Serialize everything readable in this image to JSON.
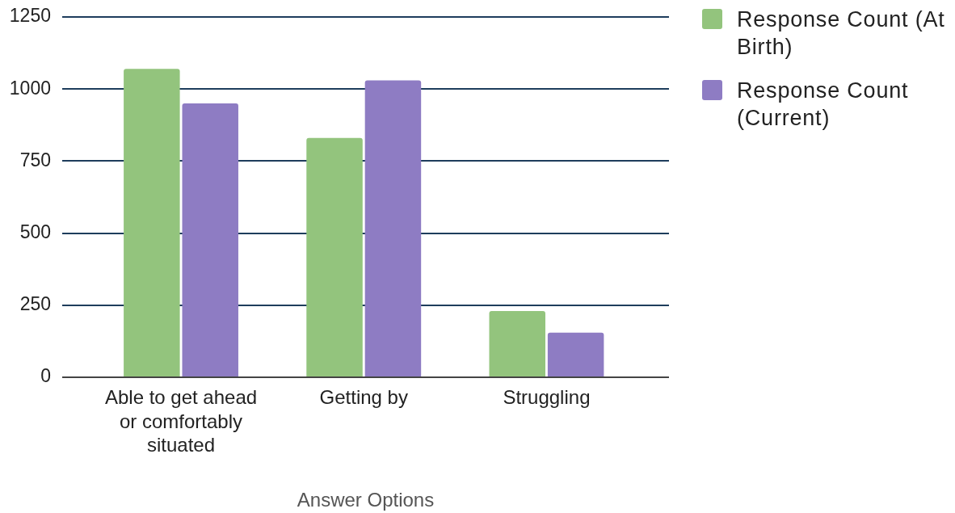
{
  "chart_data": {
    "type": "bar",
    "categories": [
      "Able to get ahead or comfortably situated",
      "Getting by",
      "Struggling"
    ],
    "series": [
      {
        "name": "Response Count (At Birth)",
        "color": "#93c47d",
        "values": [
          1070,
          830,
          230
        ]
      },
      {
        "name": "Response Count (Current)",
        "color": "#8e7cc3",
        "values": [
          950,
          1030,
          155
        ]
      }
    ],
    "xlabel": "Answer Options",
    "ylim": [
      0,
      1250
    ],
    "yticks": [
      0,
      250,
      500,
      750,
      1000,
      1250
    ],
    "grid": "y",
    "legend": "right"
  }
}
